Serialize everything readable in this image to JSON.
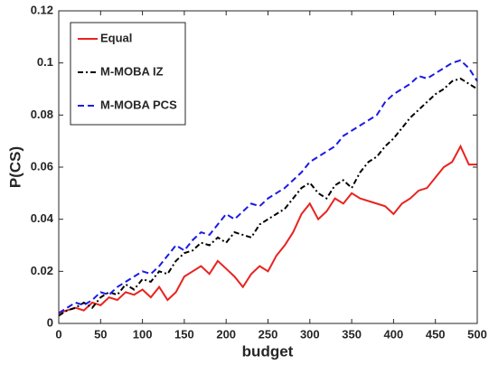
{
  "chart_data": {
    "type": "line",
    "x_label": "budget",
    "y_label": "P(CS)",
    "x": [
      0,
      10,
      20,
      30,
      40,
      50,
      60,
      70,
      80,
      90,
      100,
      110,
      120,
      130,
      140,
      150,
      160,
      170,
      180,
      190,
      200,
      210,
      220,
      230,
      240,
      250,
      260,
      270,
      280,
      290,
      300,
      310,
      320,
      330,
      340,
      350,
      360,
      370,
      380,
      390,
      400,
      410,
      420,
      430,
      440,
      450,
      460,
      470,
      480,
      490,
      500
    ],
    "series": [
      {
        "name": "Equal",
        "color": "#e8231f",
        "style": "solid",
        "values": [
          0.004,
          0.005,
          0.006,
          0.005,
          0.008,
          0.007,
          0.01,
          0.009,
          0.012,
          0.011,
          0.013,
          0.01,
          0.014,
          0.009,
          0.012,
          0.018,
          0.02,
          0.022,
          0.019,
          0.024,
          0.021,
          0.018,
          0.014,
          0.019,
          0.022,
          0.02,
          0.026,
          0.03,
          0.035,
          0.042,
          0.046,
          0.04,
          0.043,
          0.048,
          0.046,
          0.05,
          0.048,
          0.047,
          0.046,
          0.045,
          0.042,
          0.046,
          0.048,
          0.051,
          0.052,
          0.056,
          0.06,
          0.062,
          0.068,
          0.061,
          0.061
        ]
      },
      {
        "name": "M-MOBA IZ",
        "color": "#000000",
        "style": "dashdot",
        "values": [
          0.003,
          0.005,
          0.006,
          0.008,
          0.006,
          0.01,
          0.012,
          0.011,
          0.015,
          0.013,
          0.017,
          0.016,
          0.02,
          0.019,
          0.024,
          0.027,
          0.028,
          0.031,
          0.03,
          0.033,
          0.031,
          0.035,
          0.034,
          0.033,
          0.038,
          0.04,
          0.042,
          0.044,
          0.048,
          0.052,
          0.054,
          0.05,
          0.048,
          0.053,
          0.055,
          0.052,
          0.058,
          0.062,
          0.064,
          0.068,
          0.071,
          0.075,
          0.079,
          0.082,
          0.085,
          0.088,
          0.09,
          0.093,
          0.094,
          0.092,
          0.09
        ]
      },
      {
        "name": "M-MOBA PCS",
        "color": "#1a1ae6",
        "style": "dashed",
        "values": [
          0.004,
          0.006,
          0.008,
          0.007,
          0.009,
          0.012,
          0.011,
          0.014,
          0.016,
          0.018,
          0.02,
          0.019,
          0.022,
          0.026,
          0.03,
          0.028,
          0.032,
          0.035,
          0.034,
          0.038,
          0.042,
          0.04,
          0.043,
          0.046,
          0.045,
          0.048,
          0.05,
          0.052,
          0.055,
          0.058,
          0.062,
          0.064,
          0.066,
          0.068,
          0.072,
          0.074,
          0.076,
          0.078,
          0.08,
          0.085,
          0.088,
          0.09,
          0.092,
          0.095,
          0.094,
          0.096,
          0.098,
          0.1,
          0.101,
          0.098,
          0.093
        ]
      }
    ],
    "xlim": [
      0,
      500
    ],
    "xticks": [
      0,
      50,
      100,
      150,
      200,
      250,
      300,
      350,
      400,
      450,
      500
    ],
    "ylim": [
      0,
      0.12
    ],
    "yticks": [
      0,
      0.02,
      0.04,
      0.06,
      0.08,
      0.1,
      0.12
    ],
    "legend": "upper left",
    "grid": false
  }
}
